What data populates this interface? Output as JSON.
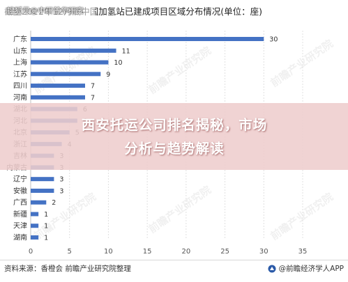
{
  "header": {
    "title": "截至2022年12月底中国加氢站已建成项目区域分布情况(单位：座)",
    "watermark": "搜狐号@中研普华研究"
  },
  "banner": {
    "line1": "西安托运公司排名揭秘，市场",
    "line2": "分析与趋势解读"
  },
  "footer": {
    "source": "资料来源：香橙会 前瞻产业研究院整理",
    "brand": "@前瞻经济学人APP"
  },
  "watermarks": [
    "前瞻产业研究院",
    "前瞻产业研究院",
    "前瞻产业研究院",
    "前瞻产业研究院",
    "前瞻产业研究院",
    "前瞻产业研究院"
  ],
  "colors": {
    "bar": "#4472c4",
    "grid": "#e0e0e0",
    "axis_text": "#555555"
  },
  "chart_data": {
    "type": "bar",
    "orientation": "horizontal",
    "categories": [
      "广东",
      "山东",
      "上海",
      "江苏",
      "四川",
      "河南",
      "湖北",
      "河北",
      "北京",
      "浙江",
      "吉林",
      "内蒙古",
      "辽宁",
      "安徽",
      "广西",
      "新疆",
      "天津",
      "湖南"
    ],
    "values": [
      30,
      11,
      10,
      9,
      7,
      7,
      6,
      6,
      5,
      4,
      3,
      3,
      3,
      3,
      2,
      1,
      1,
      1
    ],
    "xlim": [
      0,
      35
    ],
    "xticks": [
      "0",
      "5",
      "10",
      "15",
      "20",
      "25",
      "30",
      "35"
    ],
    "grid": true
  }
}
